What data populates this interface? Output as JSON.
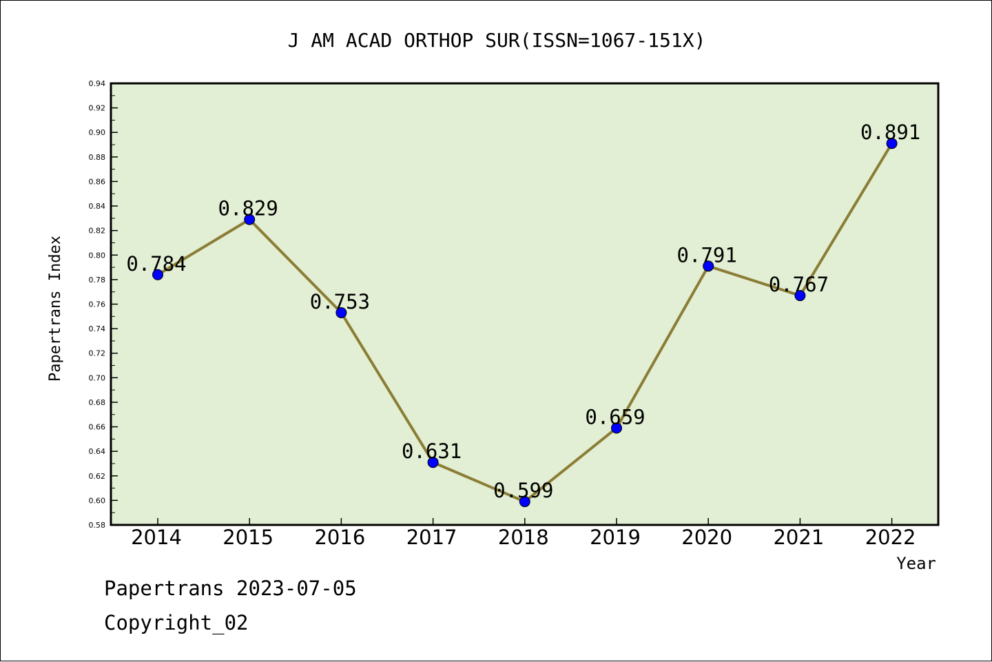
{
  "chart_data": {
    "type": "line",
    "title": "J AM ACAD ORTHOP SUR(ISSN=1067-151X)",
    "xlabel": "Year",
    "ylabel": "Papertrans Index",
    "categories": [
      "2014",
      "2015",
      "2016",
      "2017",
      "2018",
      "2019",
      "2020",
      "2021",
      "2022"
    ],
    "values": [
      0.784,
      0.829,
      0.753,
      0.631,
      0.599,
      0.659,
      0.791,
      0.767,
      0.891
    ],
    "data_labels": [
      "0.784",
      "0.829",
      "0.753",
      "0.631",
      "0.599",
      "0.659",
      "0.791",
      "0.767",
      "0.891"
    ],
    "ylim": [
      0.58,
      0.94
    ],
    "y_ticks": [
      "0.58",
      "0.60",
      "0.62",
      "0.64",
      "0.66",
      "0.68",
      "0.70",
      "0.72",
      "0.74",
      "0.76",
      "0.78",
      "0.80",
      "0.82",
      "0.84",
      "0.86",
      "0.88",
      "0.90",
      "0.92",
      "0.94"
    ],
    "grid": false,
    "legend": "none",
    "colors": {
      "plot_background": "#e2efd4",
      "line": "#8b7d35",
      "marker": "#0000ff"
    }
  },
  "footer": {
    "line1": "Papertrans 2023-07-05",
    "line2": "Copyright_02"
  }
}
